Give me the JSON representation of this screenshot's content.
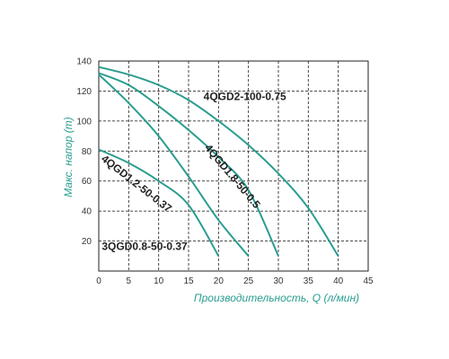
{
  "chart_data": {
    "type": "line",
    "title": "",
    "xlabel": "Производительность, Q (л/мин)",
    "ylabel": "Макс. напор (m)",
    "xlim": [
      0,
      45
    ],
    "ylim": [
      0,
      140
    ],
    "x_ticks": [
      0,
      5,
      10,
      15,
      20,
      25,
      30,
      35,
      40,
      45
    ],
    "y_ticks": [
      20,
      40,
      60,
      80,
      100,
      120,
      140
    ],
    "grid": true,
    "line_color": "#2a9d8f",
    "series": [
      {
        "name": "4QGD2-100-0.75",
        "points": [
          [
            0,
            136
          ],
          [
            5,
            131
          ],
          [
            10,
            124
          ],
          [
            15,
            114
          ],
          [
            20,
            100
          ],
          [
            25,
            84
          ],
          [
            30,
            65
          ],
          [
            35,
            42
          ],
          [
            40,
            10
          ]
        ]
      },
      {
        "name": "4QGD1.8-50-0.5",
        "points": [
          [
            0,
            132
          ],
          [
            5,
            124
          ],
          [
            10,
            110
          ],
          [
            15,
            94
          ],
          [
            20,
            76
          ],
          [
            25,
            54
          ],
          [
            30,
            10
          ]
        ]
      },
      {
        "name": "4QGD1.2-50-0.37",
        "points": [
          [
            0,
            131
          ],
          [
            5,
            112
          ],
          [
            10,
            90
          ],
          [
            15,
            63
          ],
          [
            20,
            34
          ],
          [
            25,
            10
          ]
        ]
      },
      {
        "name": "3QGD0.8-50-0.37",
        "points": [
          [
            0,
            81
          ],
          [
            5,
            72
          ],
          [
            10,
            60
          ],
          [
            15,
            44
          ],
          [
            20,
            10
          ]
        ]
      }
    ],
    "series_labels": [
      {
        "text": "4QGD2-100-0.75",
        "x": 17.5,
        "y": 114,
        "rotate": 0
      },
      {
        "text": "4QGD1.8-50-0.5",
        "x": 17.6,
        "y": 82,
        "rotate": 50
      },
      {
        "text": "4QGD1.2-50-0.37",
        "x": 0.3,
        "y": 74,
        "rotate": 38
      },
      {
        "text": "3QGD0.8-50-0.37",
        "x": 0.5,
        "y": 14,
        "rotate": 0
      }
    ]
  }
}
